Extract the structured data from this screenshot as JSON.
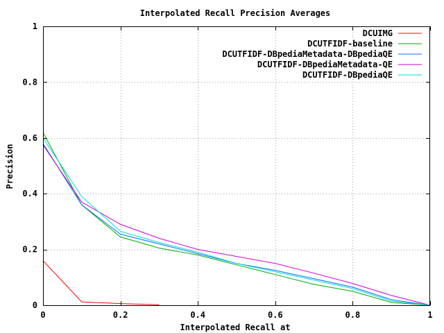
{
  "chart_data": {
    "type": "line",
    "title": "Interpolated Recall Precision Averages",
    "xlabel": "Interpolated Recall at",
    "ylabel": "Precision",
    "xlim": [
      0,
      1
    ],
    "ylim": [
      0,
      1
    ],
    "xticks": [
      "0",
      "0.2",
      "0.4",
      "0.6",
      "0.8",
      "1"
    ],
    "yticks": [
      "0",
      "0.2",
      "0.4",
      "0.6",
      "0.8",
      "1"
    ],
    "grid": true,
    "legend_position": "top-right",
    "series": [
      {
        "name": "DCUIMG",
        "color": "#ff0000",
        "x": [
          0,
          0.1,
          0.2,
          0.3
        ],
        "y": [
          0.16,
          0.012,
          0.006,
          0.002
        ]
      },
      {
        "name": "DCUTFIDF-baseline",
        "color": "#00aa00",
        "x": [
          0,
          0.1,
          0.2,
          0.3,
          0.4,
          0.5,
          0.6,
          0.7,
          0.8,
          0.9,
          1
        ],
        "y": [
          0.62,
          0.36,
          0.245,
          0.205,
          0.18,
          0.145,
          0.11,
          0.075,
          0.05,
          0.01,
          0.0
        ]
      },
      {
        "name": "DCUTFIDF-DBpediaMetadata-DBpediaQE",
        "color": "#0070ff",
        "x": [
          0,
          0.1,
          0.2,
          0.3,
          0.4,
          0.5,
          0.6,
          0.7,
          0.8,
          0.9,
          1
        ],
        "y": [
          0.58,
          0.36,
          0.255,
          0.22,
          0.185,
          0.15,
          0.125,
          0.095,
          0.065,
          0.02,
          0.0
        ]
      },
      {
        "name": "DCUTFIDF-DBpediaMetadata-QE",
        "color": "#cc00cc",
        "x": [
          0,
          0.1,
          0.2,
          0.3,
          0.4,
          0.5,
          0.6,
          0.7,
          0.8,
          0.9,
          1
        ],
        "y": [
          0.575,
          0.37,
          0.29,
          0.24,
          0.2,
          0.175,
          0.15,
          0.115,
          0.078,
          0.035,
          0.0
        ]
      },
      {
        "name": "DCUTFIDF-DBpediaQE",
        "color": "#00dddd",
        "x": [
          0,
          0.1,
          0.2,
          0.3,
          0.4,
          0.5,
          0.6,
          0.7,
          0.8,
          0.9,
          1
        ],
        "y": [
          0.6,
          0.39,
          0.265,
          0.225,
          0.19,
          0.15,
          0.12,
          0.09,
          0.06,
          0.015,
          0.0
        ]
      }
    ]
  }
}
